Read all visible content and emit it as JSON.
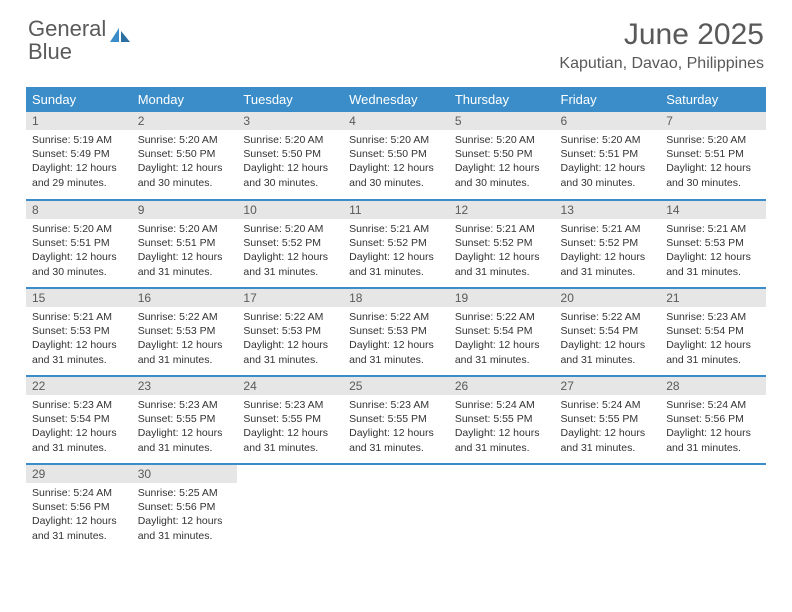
{
  "logo": {
    "part1": "General",
    "part2": "Blue"
  },
  "title": "June 2025",
  "subtitle": "Kaputian, Davao, Philippines",
  "colors": {
    "header_bg": "#3a8dc8",
    "header_fg": "#ffffff",
    "daynum_bg": "#e6e6e6",
    "text": "#333333",
    "title": "#595959",
    "row_divider": "#3a8dc8",
    "page_bg": "#ffffff"
  },
  "weekdays": [
    "Sunday",
    "Monday",
    "Tuesday",
    "Wednesday",
    "Thursday",
    "Friday",
    "Saturday"
  ],
  "days": [
    {
      "n": 1,
      "sunrise": "5:19 AM",
      "sunset": "5:49 PM",
      "daylight": "12 hours and 29 minutes."
    },
    {
      "n": 2,
      "sunrise": "5:20 AM",
      "sunset": "5:50 PM",
      "daylight": "12 hours and 30 minutes."
    },
    {
      "n": 3,
      "sunrise": "5:20 AM",
      "sunset": "5:50 PM",
      "daylight": "12 hours and 30 minutes."
    },
    {
      "n": 4,
      "sunrise": "5:20 AM",
      "sunset": "5:50 PM",
      "daylight": "12 hours and 30 minutes."
    },
    {
      "n": 5,
      "sunrise": "5:20 AM",
      "sunset": "5:50 PM",
      "daylight": "12 hours and 30 minutes."
    },
    {
      "n": 6,
      "sunrise": "5:20 AM",
      "sunset": "5:51 PM",
      "daylight": "12 hours and 30 minutes."
    },
    {
      "n": 7,
      "sunrise": "5:20 AM",
      "sunset": "5:51 PM",
      "daylight": "12 hours and 30 minutes."
    },
    {
      "n": 8,
      "sunrise": "5:20 AM",
      "sunset": "5:51 PM",
      "daylight": "12 hours and 30 minutes."
    },
    {
      "n": 9,
      "sunrise": "5:20 AM",
      "sunset": "5:51 PM",
      "daylight": "12 hours and 31 minutes."
    },
    {
      "n": 10,
      "sunrise": "5:20 AM",
      "sunset": "5:52 PM",
      "daylight": "12 hours and 31 minutes."
    },
    {
      "n": 11,
      "sunrise": "5:21 AM",
      "sunset": "5:52 PM",
      "daylight": "12 hours and 31 minutes."
    },
    {
      "n": 12,
      "sunrise": "5:21 AM",
      "sunset": "5:52 PM",
      "daylight": "12 hours and 31 minutes."
    },
    {
      "n": 13,
      "sunrise": "5:21 AM",
      "sunset": "5:52 PM",
      "daylight": "12 hours and 31 minutes."
    },
    {
      "n": 14,
      "sunrise": "5:21 AM",
      "sunset": "5:53 PM",
      "daylight": "12 hours and 31 minutes."
    },
    {
      "n": 15,
      "sunrise": "5:21 AM",
      "sunset": "5:53 PM",
      "daylight": "12 hours and 31 minutes."
    },
    {
      "n": 16,
      "sunrise": "5:22 AM",
      "sunset": "5:53 PM",
      "daylight": "12 hours and 31 minutes."
    },
    {
      "n": 17,
      "sunrise": "5:22 AM",
      "sunset": "5:53 PM",
      "daylight": "12 hours and 31 minutes."
    },
    {
      "n": 18,
      "sunrise": "5:22 AM",
      "sunset": "5:53 PM",
      "daylight": "12 hours and 31 minutes."
    },
    {
      "n": 19,
      "sunrise": "5:22 AM",
      "sunset": "5:54 PM",
      "daylight": "12 hours and 31 minutes."
    },
    {
      "n": 20,
      "sunrise": "5:22 AM",
      "sunset": "5:54 PM",
      "daylight": "12 hours and 31 minutes."
    },
    {
      "n": 21,
      "sunrise": "5:23 AM",
      "sunset": "5:54 PM",
      "daylight": "12 hours and 31 minutes."
    },
    {
      "n": 22,
      "sunrise": "5:23 AM",
      "sunset": "5:54 PM",
      "daylight": "12 hours and 31 minutes."
    },
    {
      "n": 23,
      "sunrise": "5:23 AM",
      "sunset": "5:55 PM",
      "daylight": "12 hours and 31 minutes."
    },
    {
      "n": 24,
      "sunrise": "5:23 AM",
      "sunset": "5:55 PM",
      "daylight": "12 hours and 31 minutes."
    },
    {
      "n": 25,
      "sunrise": "5:23 AM",
      "sunset": "5:55 PM",
      "daylight": "12 hours and 31 minutes."
    },
    {
      "n": 26,
      "sunrise": "5:24 AM",
      "sunset": "5:55 PM",
      "daylight": "12 hours and 31 minutes."
    },
    {
      "n": 27,
      "sunrise": "5:24 AM",
      "sunset": "5:55 PM",
      "daylight": "12 hours and 31 minutes."
    },
    {
      "n": 28,
      "sunrise": "5:24 AM",
      "sunset": "5:56 PM",
      "daylight": "12 hours and 31 minutes."
    },
    {
      "n": 29,
      "sunrise": "5:24 AM",
      "sunset": "5:56 PM",
      "daylight": "12 hours and 31 minutes."
    },
    {
      "n": 30,
      "sunrise": "5:25 AM",
      "sunset": "5:56 PM",
      "daylight": "12 hours and 31 minutes."
    }
  ],
  "labels": {
    "sunrise": "Sunrise:",
    "sunset": "Sunset:",
    "daylight": "Daylight:"
  }
}
